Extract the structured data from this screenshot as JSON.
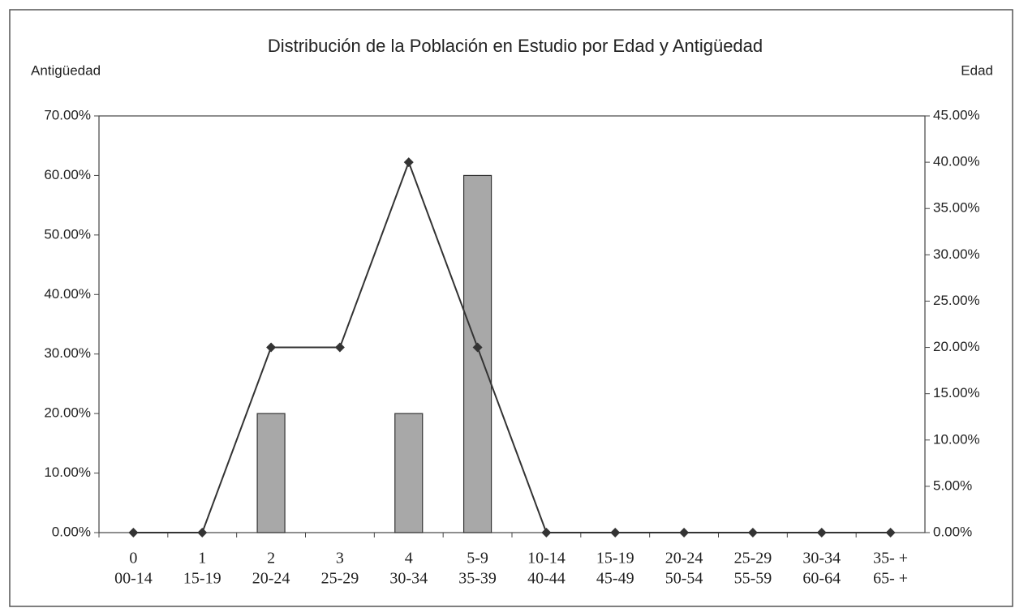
{
  "chart_data": {
    "type": "bar",
    "title": "Distribución de la Población en Estudio por Edad y Antigüedad",
    "ylabel": "Antigüedad",
    "y2label": "Edad",
    "categories": [
      [
        "0",
        "00-14"
      ],
      [
        "1",
        "15-19"
      ],
      [
        "2",
        "20-24"
      ],
      [
        "3",
        "25-29"
      ],
      [
        "4",
        "30-34"
      ],
      [
        "5-9",
        "35-39"
      ],
      [
        "10-14",
        "40-44"
      ],
      [
        "15-19",
        "45-49"
      ],
      [
        "20-24",
        "50-54"
      ],
      [
        "25-29",
        "55-59"
      ],
      [
        "30-34",
        "60-64"
      ],
      [
        "35- +",
        "65- +"
      ]
    ],
    "series": [
      {
        "type": "bar",
        "color": "#a8a8a8",
        "values": [
          0,
          0,
          20,
          0,
          20,
          60,
          0,
          0,
          0,
          0,
          0,
          0
        ]
      },
      {
        "type": "line",
        "axis": "y2",
        "color": "#333333",
        "values": [
          0,
          0,
          20,
          20,
          40,
          20,
          0,
          0,
          0,
          0,
          0,
          0
        ]
      }
    ],
    "ylim": [
      0,
      70
    ],
    "yticks": [
      {
        "value": 0,
        "label": "0.00%"
      },
      {
        "value": 10,
        "label": "10.00%"
      },
      {
        "value": 20,
        "label": "20.00%"
      },
      {
        "value": 30,
        "label": "30.00%"
      },
      {
        "value": 40,
        "label": "40.00%"
      },
      {
        "value": 50,
        "label": "50.00%"
      },
      {
        "value": 60,
        "label": "60.00%"
      },
      {
        "value": 70,
        "label": "70.00%"
      }
    ],
    "y2lim": [
      0,
      45
    ],
    "y2ticks": [
      {
        "value": 0,
        "label": "0.00%"
      },
      {
        "value": 5,
        "label": "5.00%"
      },
      {
        "value": 10,
        "label": "10.00%"
      },
      {
        "value": 15,
        "label": "15.00%"
      },
      {
        "value": 20,
        "label": "20.00%"
      },
      {
        "value": 25,
        "label": "25.00%"
      },
      {
        "value": 30,
        "label": "30.00%"
      },
      {
        "value": 35,
        "label": "35.00%"
      },
      {
        "value": 40,
        "label": "40.00%"
      },
      {
        "value": 45,
        "label": "45.00%"
      }
    ]
  }
}
